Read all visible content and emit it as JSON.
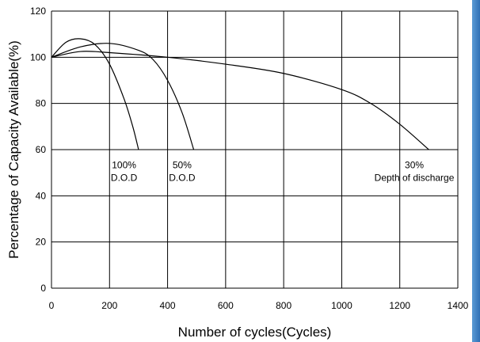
{
  "chart_data": {
    "type": "line",
    "xlabel": "Number of cycles(Cycles)",
    "ylabel": "Percentage of Capacity Available(%)",
    "xlim": [
      0,
      1400
    ],
    "ylim": [
      0,
      120
    ],
    "x_ticks": [
      0,
      200,
      400,
      600,
      800,
      1000,
      1200,
      1400
    ],
    "y_ticks": [
      0,
      20,
      40,
      60,
      80,
      100,
      120
    ],
    "grid": true,
    "series": [
      {
        "name": "100% D.O.D",
        "label_lines": [
          "100%",
          "D.O.D"
        ],
        "label_anchor": [
          250,
          52
        ],
        "x": [
          0,
          50,
          100,
          150,
          200,
          250,
          280,
          300
        ],
        "y": [
          100,
          106.5,
          108,
          105.5,
          97,
          82,
          70,
          60
        ]
      },
      {
        "name": "50% D.O.D",
        "label_lines": [
          "50%",
          "D.O.D"
        ],
        "label_anchor": [
          450,
          52
        ],
        "x": [
          0,
          100,
          200,
          300,
          350,
          400,
          450,
          490
        ],
        "y": [
          100,
          104.5,
          106,
          103,
          99,
          90,
          76,
          60
        ]
      },
      {
        "name": "30% Depth of discharge",
        "label_lines": [
          "30%",
          "Depth of discharge"
        ],
        "label_anchor": [
          1250,
          52
        ],
        "x": [
          0,
          100,
          200,
          400,
          600,
          800,
          1000,
          1100,
          1200,
          1300
        ],
        "y": [
          100,
          102.5,
          102,
          100,
          97,
          93,
          86,
          80,
          71,
          60
        ]
      }
    ]
  },
  "colors": {
    "line": "#000000",
    "grid": "#000000",
    "accent_edge": "#2f6fb5"
  }
}
